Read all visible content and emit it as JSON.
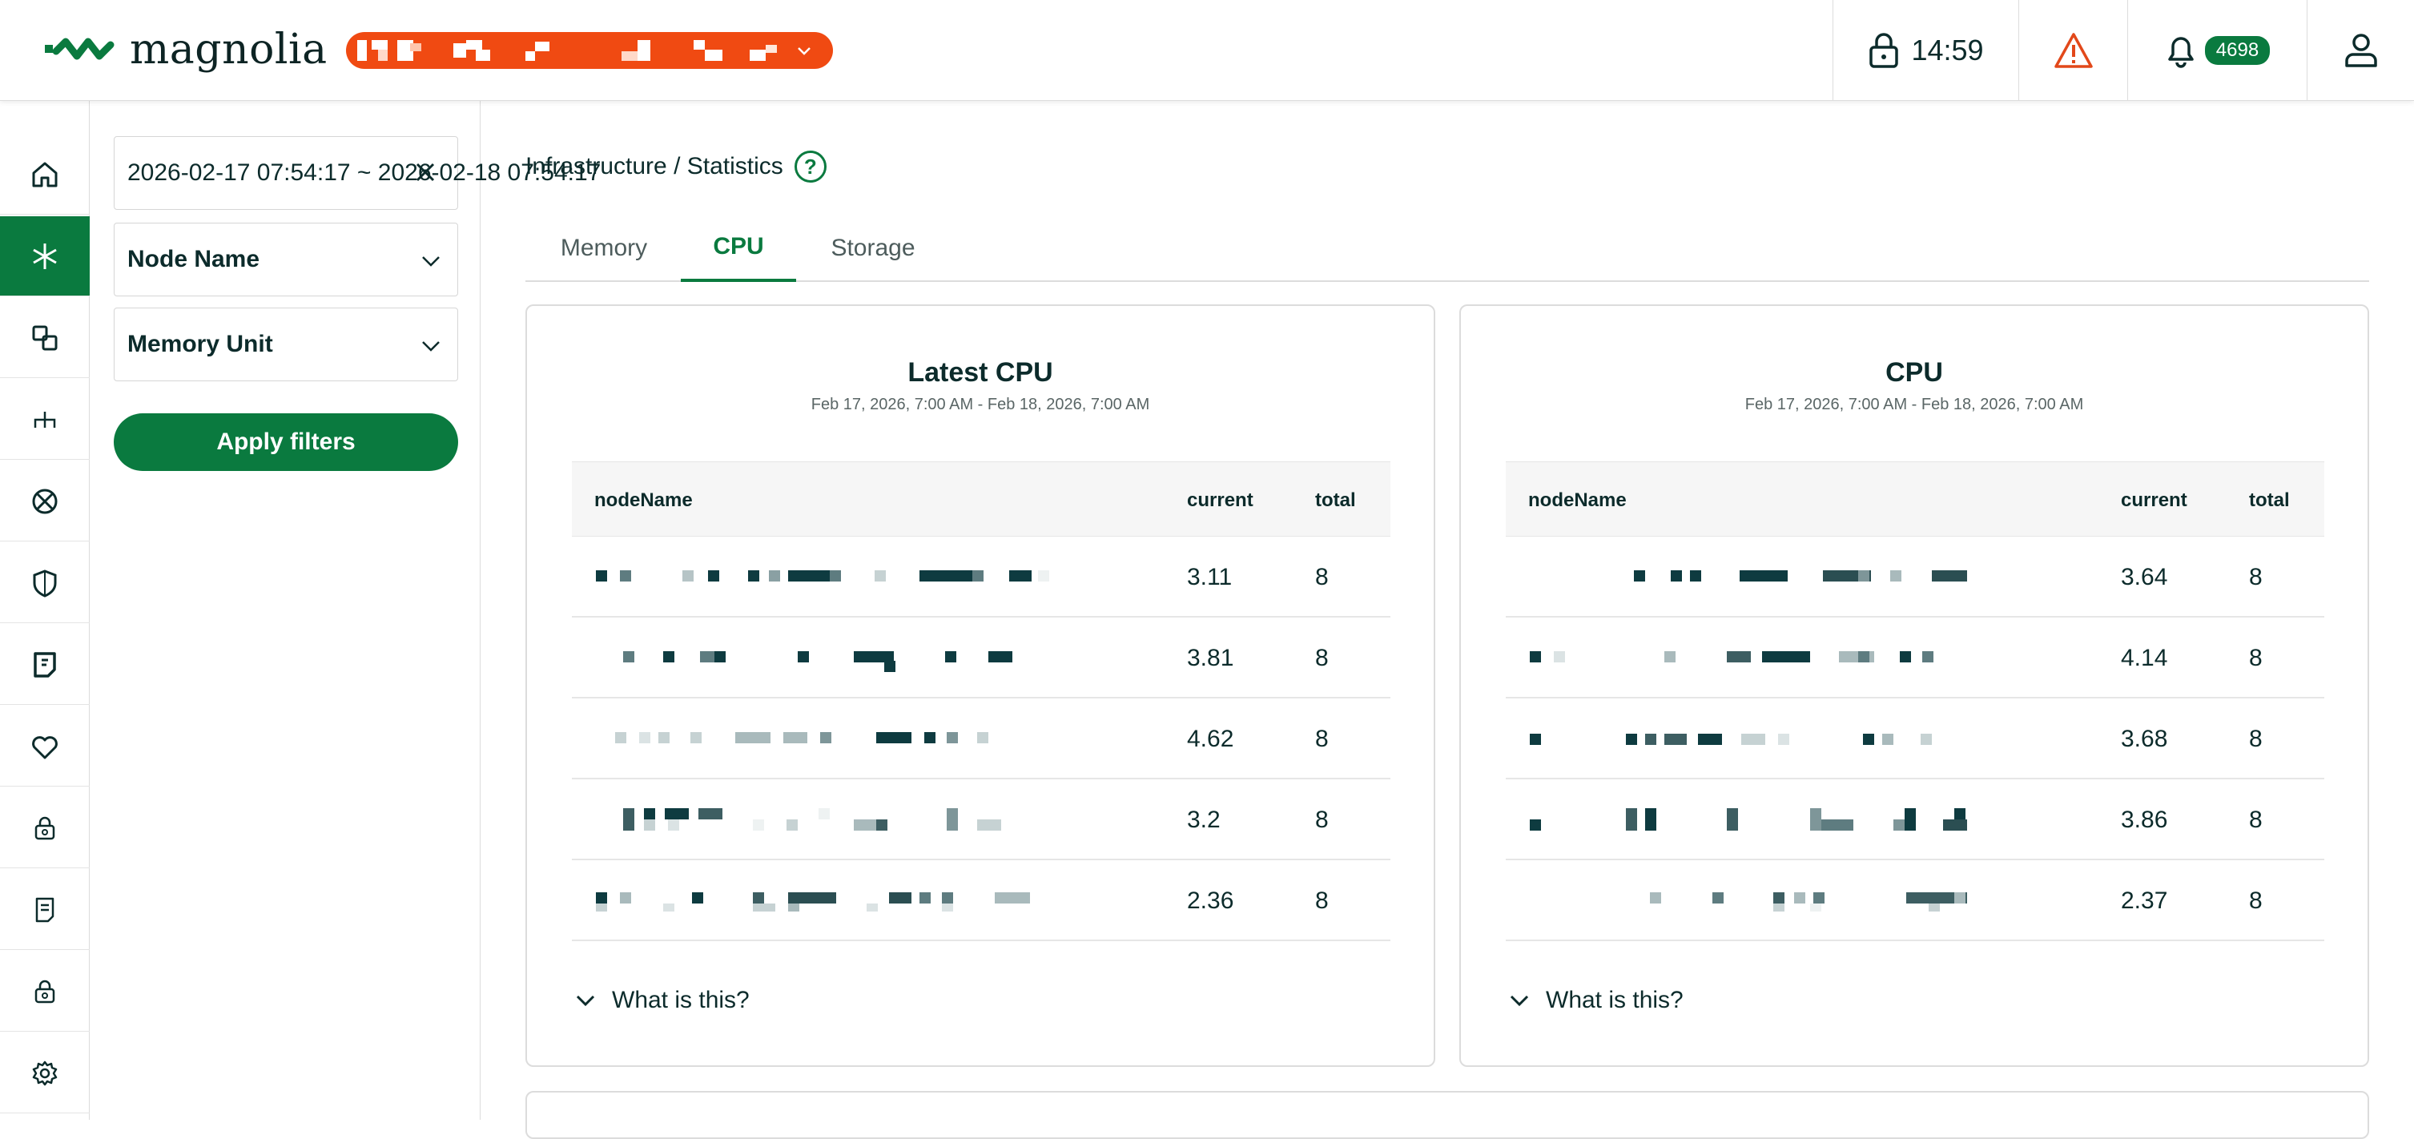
{
  "header": {
    "logo_text": "magnolia",
    "session_time": "14:59",
    "notification_count": "4698",
    "accent_color": "#0a7a3f",
    "env_pill_color": "#f04a12"
  },
  "rail": {
    "items": [
      {
        "icon": "home-icon"
      },
      {
        "icon": "asterisk-icon",
        "active": true
      },
      {
        "icon": "nodes-icon"
      },
      {
        "icon": "topology-icon"
      },
      {
        "icon": "blocked-icon"
      },
      {
        "icon": "shield-icon"
      },
      {
        "icon": "report-icon"
      },
      {
        "icon": "heart-icon"
      },
      {
        "icon": "locked-eye-icon"
      },
      {
        "icon": "document-icon"
      },
      {
        "icon": "locked-eye-2-icon"
      },
      {
        "icon": "gear-icon"
      }
    ]
  },
  "filters": {
    "date_range": "2026-02-17 07:54:17 ~ 2026-02-18 07:54:17",
    "node_name_label": "Node Name",
    "memory_unit_label": "Memory Unit",
    "apply_label": "Apply filters"
  },
  "breadcrumb": "Infrastructure / Statistics",
  "help_symbol": "?",
  "tabs": [
    {
      "label": "Memory"
    },
    {
      "label": "CPU",
      "active": true
    },
    {
      "label": "Storage"
    }
  ],
  "cards": [
    {
      "title": "Latest CPU",
      "subtitle": "Feb 17, 2026, 7:00 AM - Feb 18, 2026, 7:00 AM",
      "columns": [
        "nodeName",
        "current",
        "total"
      ],
      "rows": [
        {
          "current": "3.11",
          "total": "8"
        },
        {
          "current": "3.81",
          "total": "8"
        },
        {
          "current": "4.62",
          "total": "8"
        },
        {
          "current": "3.2",
          "total": "8"
        },
        {
          "current": "2.36",
          "total": "8"
        }
      ],
      "what_label": "What is this?"
    },
    {
      "title": "CPU",
      "subtitle": "Feb 17, 2026, 7:00 AM - Feb 18, 2026, 7:00 AM",
      "columns": [
        "nodeName",
        "current",
        "total"
      ],
      "rows": [
        {
          "current": "3.64",
          "total": "8"
        },
        {
          "current": "4.14",
          "total": "8"
        },
        {
          "current": "3.68",
          "total": "8"
        },
        {
          "current": "3.86",
          "total": "8"
        },
        {
          "current": "2.37",
          "total": "8"
        }
      ],
      "what_label": "What is this?"
    }
  ]
}
